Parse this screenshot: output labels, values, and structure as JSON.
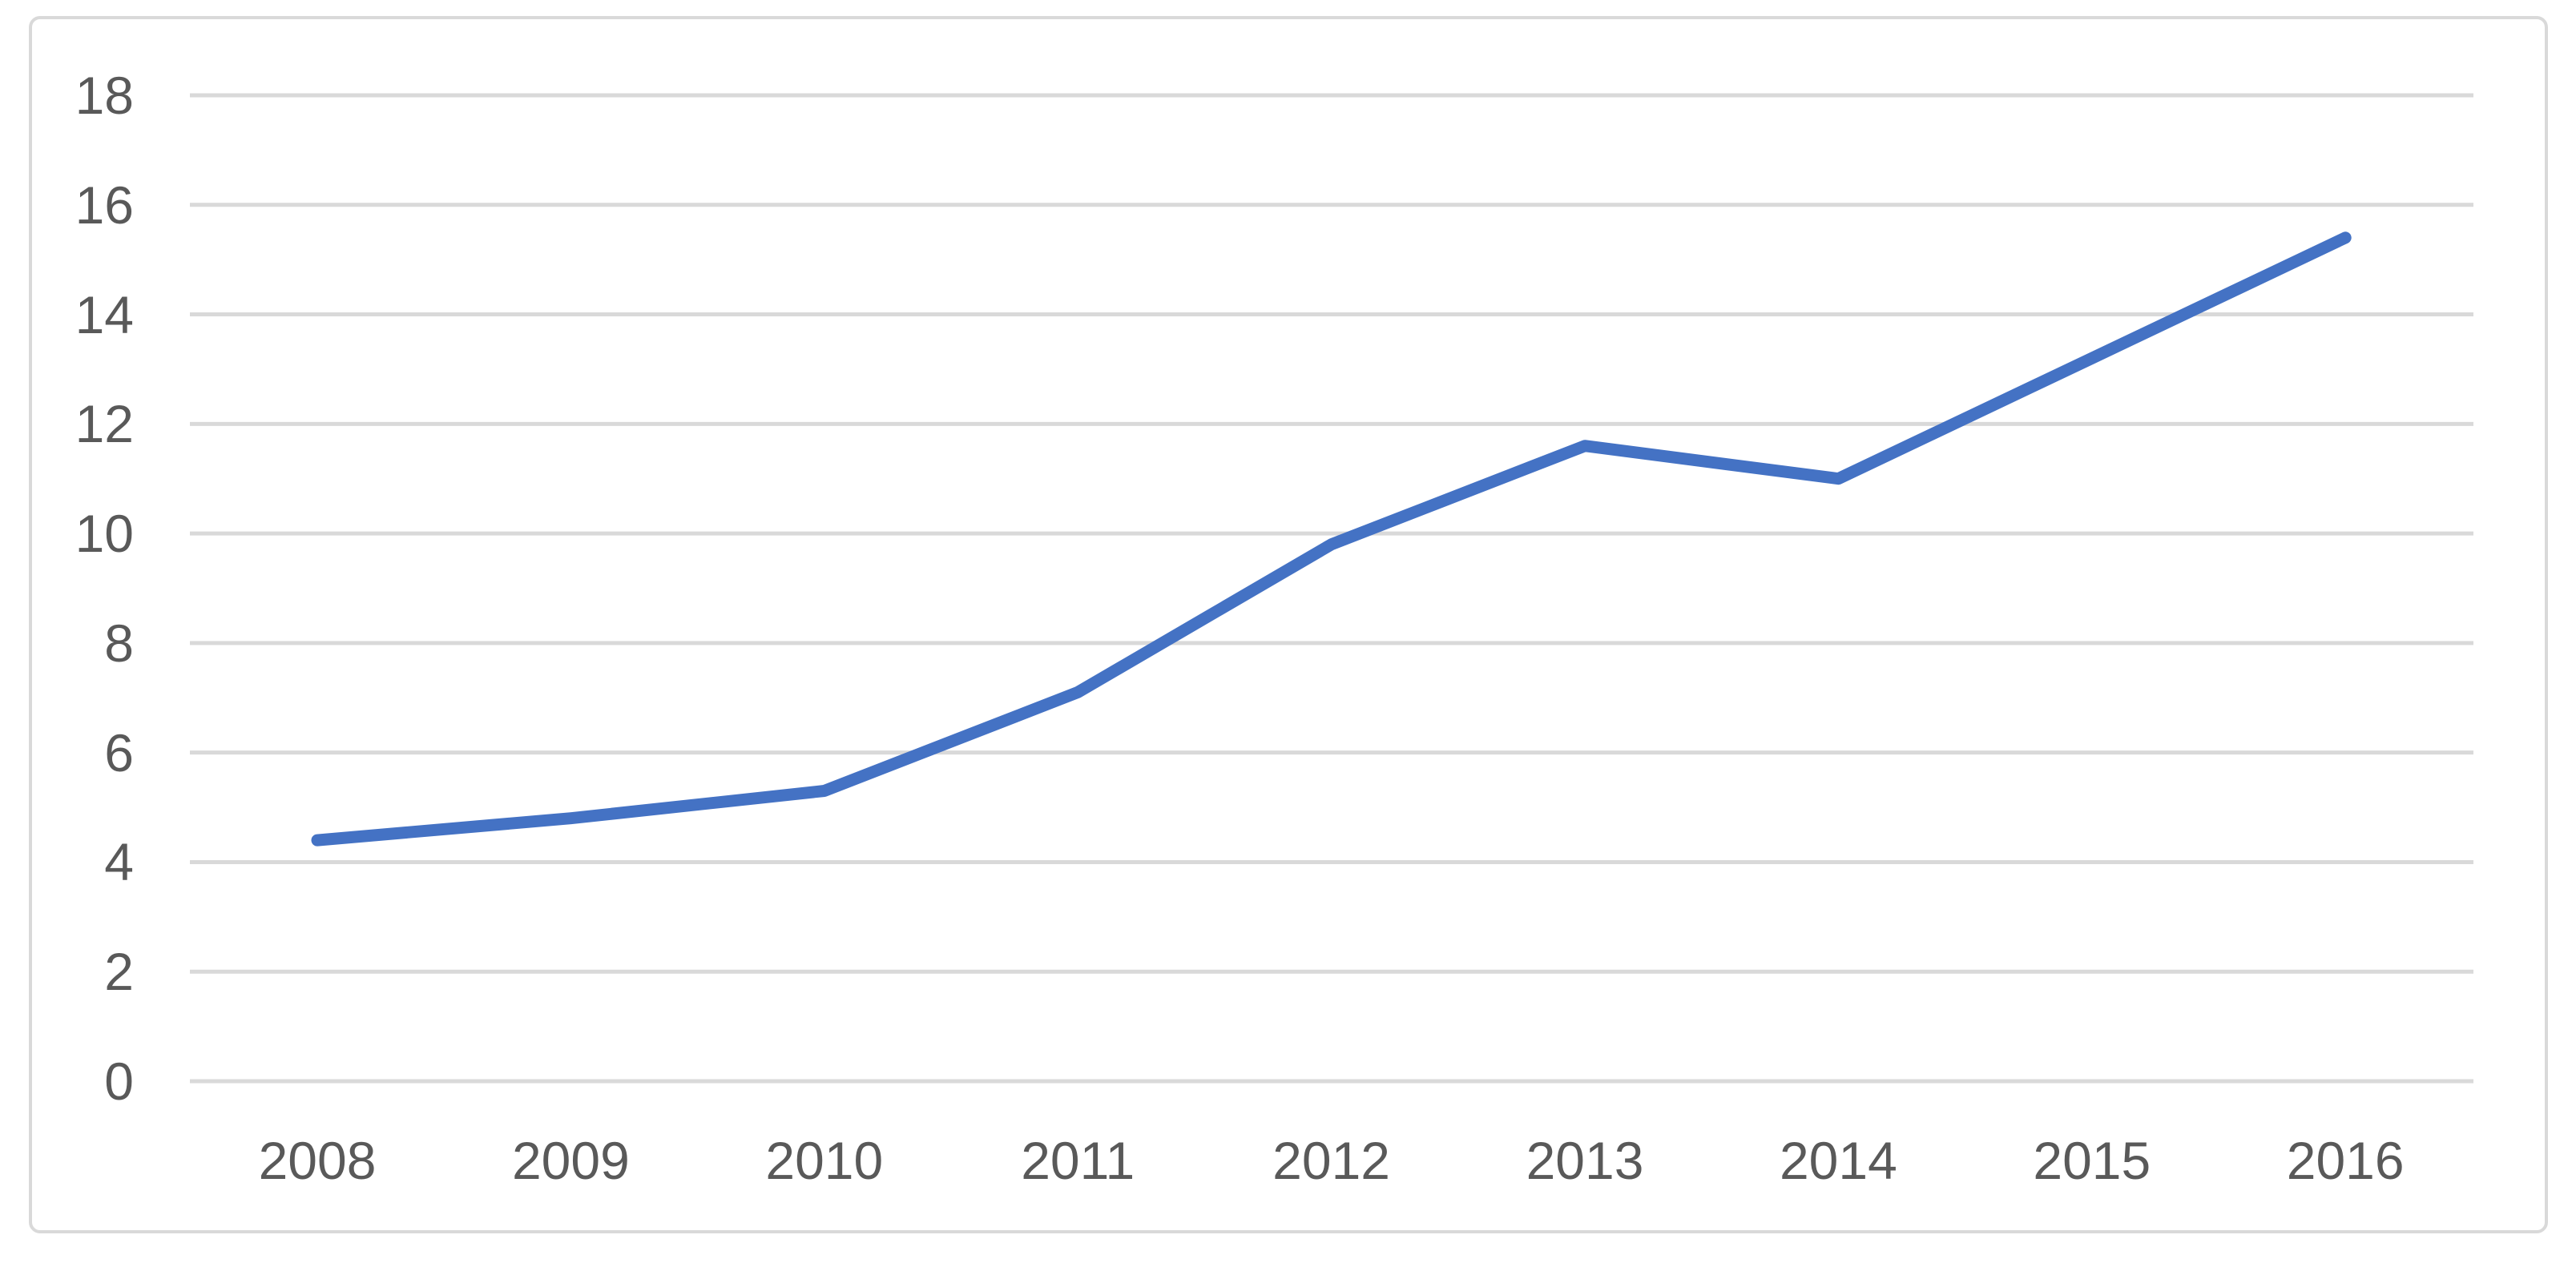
{
  "chart_data": {
    "type": "line",
    "title": "",
    "xlabel": "",
    "ylabel": "",
    "categories": [
      "2008",
      "2009",
      "2010",
      "2011",
      "2012",
      "2013",
      "2014",
      "2015",
      "2016"
    ],
    "series": [
      {
        "name": "",
        "values": [
          4.4,
          4.8,
          5.3,
          7.1,
          9.8,
          11.6,
          11.0,
          13.2,
          15.4
        ]
      }
    ],
    "ylim": [
      0,
      18
    ],
    "ytick_step": 2,
    "y_tick_labels": [
      "0",
      "2",
      "4",
      "6",
      "8",
      "10",
      "12",
      "14",
      "16",
      "18"
    ],
    "grid": "horizontal",
    "legend": "none",
    "colors": {
      "line": "#4472C4",
      "gridline": "#D9D9D9",
      "axis_text": "#595959",
      "frame_border": "#D9D9D9",
      "background": "#FFFFFF"
    }
  }
}
